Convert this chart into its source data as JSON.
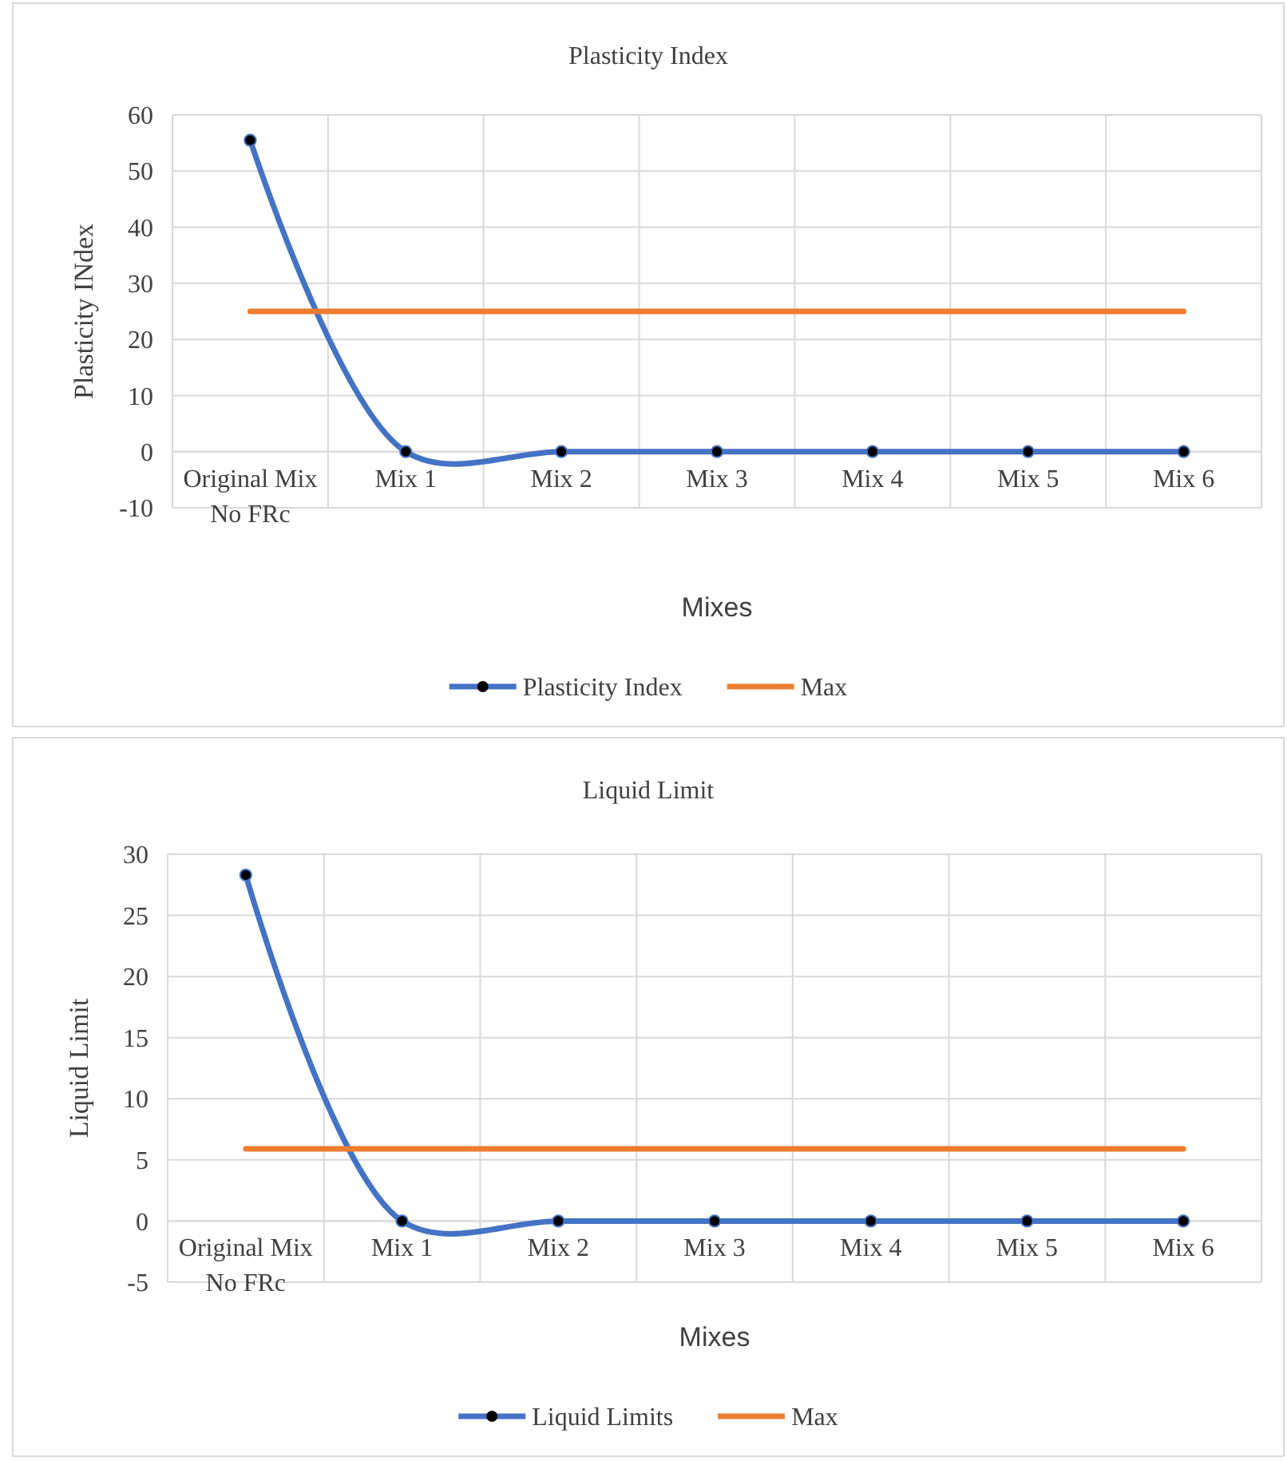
{
  "chart_data": [
    {
      "type": "line",
      "title": "Plasticity Index",
      "xlabel": "Mixes",
      "ylabel": "Plasticity INdex",
      "categories": [
        "Original Mix No FRc",
        "Mix 1",
        "Mix 2",
        "Mix 3",
        "Mix 4",
        "Mix 5",
        "Mix 6"
      ],
      "series": [
        {
          "name": "Plasticity Index",
          "color": "#4472c4",
          "marker": "circle",
          "values": [
            55.5,
            0,
            0,
            0,
            0,
            0,
            0
          ]
        },
        {
          "name": "Max",
          "color": "#ed7d31",
          "marker": "none",
          "values": [
            25,
            25,
            25,
            25,
            25,
            25,
            25
          ]
        }
      ],
      "ylim": [
        -10,
        60
      ],
      "yticks": [
        -10,
        0,
        10,
        20,
        30,
        40,
        50,
        60
      ],
      "grid": true,
      "legend": "bottom"
    },
    {
      "type": "line",
      "title": "Liquid Limit",
      "xlabel": "Mixes",
      "ylabel": "Liquid Limit",
      "categories": [
        "Original Mix No FRc",
        "Mix 1",
        "Mix 2",
        "Mix 3",
        "Mix 4",
        "Mix 5",
        "Mix 6"
      ],
      "series": [
        {
          "name": "Liquid Limits",
          "color": "#4472c4",
          "marker": "circle",
          "values": [
            28.3,
            0,
            0,
            0,
            0,
            0,
            0
          ]
        },
        {
          "name": "Max",
          "color": "#ed7d31",
          "marker": "none",
          "values": [
            5.9,
            5.9,
            5.9,
            5.9,
            5.9,
            5.9,
            5.9
          ]
        }
      ],
      "ylim": [
        -5,
        30
      ],
      "yticks": [
        -5,
        0,
        5,
        10,
        15,
        20,
        25,
        30
      ],
      "grid": true,
      "legend": "bottom"
    }
  ]
}
